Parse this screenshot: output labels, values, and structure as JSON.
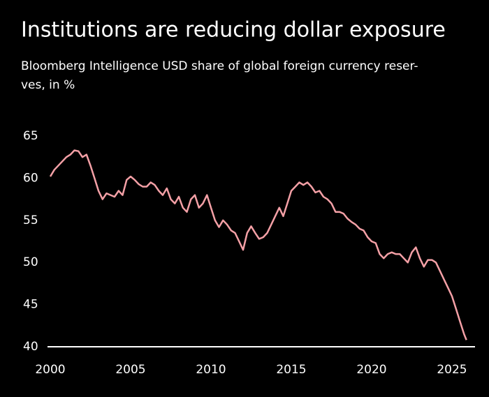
{
  "chart_data": {
    "type": "line",
    "title": "Institutions are reducing dollar exposure",
    "subtitle": [
      "Bloomberg Intelligence USD share of global foreign currency reser-",
      "ves, in %"
    ],
    "x": [
      2000,
      2000.25,
      2000.5,
      2000.75,
      2001,
      2001.25,
      2001.5,
      2001.75,
      2002,
      2002.25,
      2002.5,
      2002.75,
      2003,
      2003.25,
      2003.5,
      2003.75,
      2004,
      2004.25,
      2004.5,
      2004.75,
      2005,
      2005.25,
      2005.5,
      2005.75,
      2006,
      2006.25,
      2006.5,
      2006.75,
      2007,
      2007.25,
      2007.5,
      2007.75,
      2008,
      2008.25,
      2008.5,
      2008.75,
      2009,
      2009.25,
      2009.5,
      2009.75,
      2010,
      2010.25,
      2010.5,
      2010.75,
      2011,
      2011.25,
      2011.5,
      2011.75,
      2012,
      2012.25,
      2012.5,
      2012.75,
      2013,
      2013.25,
      2013.5,
      2013.75,
      2014,
      2014.25,
      2014.5,
      2014.75,
      2015,
      2015.25,
      2015.5,
      2015.75,
      2016,
      2016.25,
      2016.5,
      2016.75,
      2017,
      2017.25,
      2017.5,
      2017.75,
      2018,
      2018.25,
      2018.5,
      2018.75,
      2019,
      2019.25,
      2019.5,
      2019.75,
      2020,
      2020.25,
      2020.5,
      2020.75,
      2021,
      2021.25,
      2021.5,
      2021.75,
      2022,
      2022.25,
      2022.5,
      2022.75,
      2023,
      2023.25,
      2023.5,
      2023.75,
      2024,
      2024.25,
      2024.5,
      2024.75,
      2025,
      2025.25,
      2025.5,
      2025.75,
      2025.9
    ],
    "series": [
      {
        "name": "USD share",
        "color": "#f4a0a6",
        "values": [
          60.2,
          61,
          61.5,
          62,
          62.5,
          62.8,
          63.3,
          63.2,
          62.5,
          62.8,
          61.5,
          60,
          58.5,
          57.5,
          58.2,
          58,
          57.8,
          58.5,
          58,
          59.8,
          60.2,
          59.8,
          59.3,
          59,
          59,
          59.5,
          59.2,
          58.5,
          58,
          58.8,
          57.5,
          57,
          57.8,
          56.5,
          56,
          57.5,
          58,
          56.5,
          57,
          58,
          56.5,
          55,
          54.2,
          55,
          54.5,
          53.8,
          53.5,
          52.5,
          51.5,
          53.5,
          54.3,
          53.5,
          52.8,
          53,
          53.5,
          54.5,
          55.5,
          56.5,
          55.5,
          57,
          58.5,
          59,
          59.5,
          59.2,
          59.5,
          59,
          58.3,
          58.5,
          57.8,
          57.5,
          57,
          56,
          56,
          55.8,
          55.2,
          54.8,
          54.5,
          54,
          53.8,
          53,
          52.5,
          52.3,
          51,
          50.5,
          51,
          51.2,
          51,
          51,
          50.5,
          50,
          51.2,
          51.8,
          50.5,
          49.5,
          50.3,
          50.3,
          50,
          49,
          48,
          47,
          46,
          44.5,
          43,
          41.5,
          40.8
        ]
      }
    ],
    "xlim": [
      2000,
      2026
    ],
    "xticks": [
      2000,
      2005,
      2010,
      2015,
      2020,
      2025
    ],
    "ylim": [
      40,
      65
    ],
    "yticks": [
      40,
      45,
      50,
      55,
      60,
      65
    ]
  }
}
